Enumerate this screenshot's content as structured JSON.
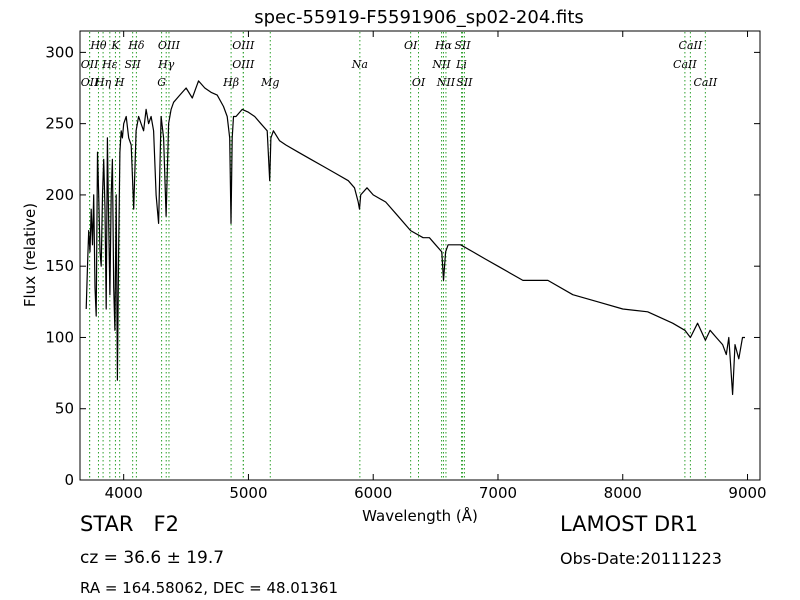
{
  "chart_data": {
    "type": "line",
    "title": "spec-55919-F5591906_sp02-204.fits",
    "xlabel": "Wavelength (Å)",
    "ylabel": "Flux (relative)",
    "xlim": [
      3650,
      9100
    ],
    "ylim": [
      0,
      315
    ],
    "xticks": [
      4000,
      5000,
      6000,
      7000,
      8000,
      9000
    ],
    "yticks": [
      0,
      50,
      100,
      150,
      200,
      250,
      300
    ],
    "grid": false,
    "series": [
      {
        "color": "#000000",
        "x": [
          3700,
          3710,
          3720,
          3730,
          3740,
          3750,
          3760,
          3770,
          3780,
          3790,
          3800,
          3810,
          3820,
          3830,
          3840,
          3850,
          3860,
          3870,
          3880,
          3890,
          3900,
          3910,
          3920,
          3930,
          3940,
          3950,
          3960,
          3970,
          3980,
          3990,
          4000,
          4020,
          4040,
          4060,
          4080,
          4100,
          4120,
          4140,
          4160,
          4180,
          4200,
          4220,
          4240,
          4260,
          4280,
          4300,
          4320,
          4340,
          4360,
          4380,
          4400,
          4450,
          4500,
          4550,
          4600,
          4650,
          4700,
          4750,
          4800,
          4830,
          4850,
          4860,
          4870,
          4880,
          4900,
          4950,
          5000,
          5050,
          5100,
          5150,
          5170,
          5180,
          5200,
          5250,
          5300,
          5400,
          5500,
          5600,
          5700,
          5800,
          5850,
          5880,
          5890,
          5900,
          5950,
          6000,
          6100,
          6200,
          6300,
          6400,
          6450,
          6500,
          6550,
          6563,
          6580,
          6600,
          6700,
          6800,
          6900,
          7000,
          7200,
          7400,
          7600,
          7800,
          8000,
          8200,
          8400,
          8498,
          8542,
          8600,
          8662,
          8700,
          8750,
          8800,
          8830,
          8850,
          8880,
          8900,
          8930,
          8960,
          8980
        ],
        "y": [
          120,
          150,
          175,
          160,
          190,
          165,
          200,
          135,
          115,
          230,
          200,
          160,
          150,
          200,
          225,
          190,
          120,
          240,
          180,
          130,
          200,
          225,
          135,
          105,
          200,
          70,
          165,
          230,
          245,
          240,
          250,
          255,
          240,
          235,
          190,
          245,
          255,
          250,
          245,
          260,
          250,
          255,
          245,
          200,
          180,
          255,
          240,
          185,
          250,
          260,
          265,
          270,
          275,
          268,
          280,
          275,
          272,
          270,
          262,
          255,
          240,
          180,
          240,
          255,
          255,
          260,
          258,
          255,
          250,
          245,
          210,
          240,
          245,
          238,
          235,
          230,
          225,
          220,
          215,
          210,
          205,
          195,
          190,
          200,
          205,
          200,
          195,
          185,
          175,
          170,
          170,
          165,
          160,
          140,
          160,
          165,
          165,
          160,
          155,
          150,
          140,
          140,
          130,
          125,
          120,
          118,
          110,
          105,
          100,
          110,
          98,
          105,
          100,
          95,
          88,
          100,
          60,
          95,
          85,
          100,
          100
        ]
      }
    ],
    "lines": [
      {
        "label": "Hθ",
        "wave": 3798,
        "row": 0,
        "color": "#2ca02c"
      },
      {
        "label": "K",
        "wave": 3934,
        "row": 0,
        "color": "#2ca02c"
      },
      {
        "label": "Hδ",
        "wave": 4102,
        "row": 0,
        "color": "#2ca02c"
      },
      {
        "label": "OIII",
        "wave": 4363,
        "row": 0,
        "color": "#2ca02c"
      },
      {
        "label": "OIII",
        "wave": 4959,
        "row": 0,
        "color": "#2ca02c"
      },
      {
        "label": "OI",
        "wave": 6300,
        "row": 0,
        "color": "#2ca02c"
      },
      {
        "label": "Hα",
        "wave": 6563,
        "row": 0,
        "color": "#2ca02c"
      },
      {
        "label": "SII",
        "wave": 6716,
        "row": 0,
        "color": "#2ca02c"
      },
      {
        "label": "CaII",
        "wave": 8542,
        "row": 0,
        "color": "#2ca02c"
      },
      {
        "label": "OII",
        "wave": 3727,
        "row": 1,
        "color": "#2ca02c"
      },
      {
        "label": "Hε",
        "wave": 3889,
        "row": 1,
        "color": "#2ca02c"
      },
      {
        "label": "SII",
        "wave": 4072,
        "row": 1,
        "color": "#2ca02c"
      },
      {
        "label": "Hγ",
        "wave": 4341,
        "row": 1,
        "color": "#2ca02c"
      },
      {
        "label": "OIII",
        "wave": 4959,
        "row": 1,
        "color": "#2ca02c"
      },
      {
        "label": "Na",
        "wave": 5893,
        "row": 1,
        "color": "#2ca02c"
      },
      {
        "label": "NII",
        "wave": 6548,
        "row": 1,
        "color": "#2ca02c"
      },
      {
        "label": "Li",
        "wave": 6708,
        "row": 1,
        "color": "#2ca02c"
      },
      {
        "label": "CaII",
        "wave": 8498,
        "row": 1,
        "color": "#2ca02c"
      },
      {
        "label": "OII",
        "wave": 3727,
        "row": 2,
        "color": "#2ca02c"
      },
      {
        "label": "Hη",
        "wave": 3835,
        "row": 2,
        "color": "#2ca02c"
      },
      {
        "label": "H",
        "wave": 3968,
        "row": 2,
        "color": "#2ca02c"
      },
      {
        "label": "G",
        "wave": 4304,
        "row": 2,
        "color": "#2ca02c"
      },
      {
        "label": "Hβ",
        "wave": 4861,
        "row": 2,
        "color": "#2ca02c"
      },
      {
        "label": "Mg",
        "wave": 5175,
        "row": 2,
        "color": "#2ca02c"
      },
      {
        "label": "OI",
        "wave": 6363,
        "row": 2,
        "color": "#2ca02c"
      },
      {
        "label": "NII",
        "wave": 6583,
        "row": 2,
        "color": "#2ca02c"
      },
      {
        "label": "SII",
        "wave": 6731,
        "row": 2,
        "color": "#2ca02c"
      },
      {
        "label": "CaII",
        "wave": 8662,
        "row": 2,
        "color": "#2ca02c"
      }
    ]
  },
  "info": {
    "object_class": "STAR   F2",
    "redshift": "cz = 36.6 ± 19.7",
    "coordinates": "RA = 164.58062, DEC = 48.01361",
    "survey": "LAMOST DR1",
    "obs_date": "Obs-Date:20111223"
  }
}
